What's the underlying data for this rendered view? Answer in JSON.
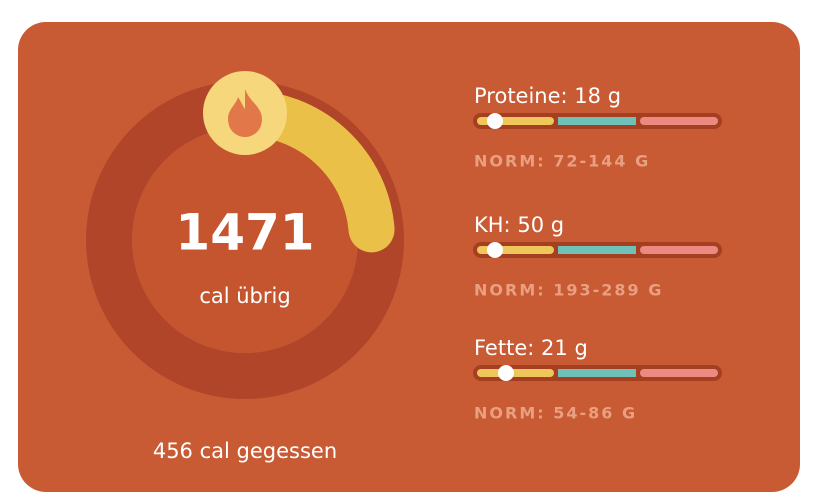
{
  "summary": {
    "remaining": {
      "value": 1471,
      "label": "cal übrig"
    },
    "eaten": {
      "value": 456,
      "label": "cal gegessen"
    }
  },
  "macros": [
    {
      "name": "Proteine:",
      "amount": 18,
      "unit": "g",
      "norm": "NORM: 72-144 G"
    },
    {
      "name": "KH:",
      "amount": 50,
      "unit": "g",
      "norm": "NORM: 193-289 G"
    },
    {
      "name": "Fette:",
      "amount": 21,
      "unit": "g",
      "norm": "NORM: 54-86 G"
    }
  ]
}
